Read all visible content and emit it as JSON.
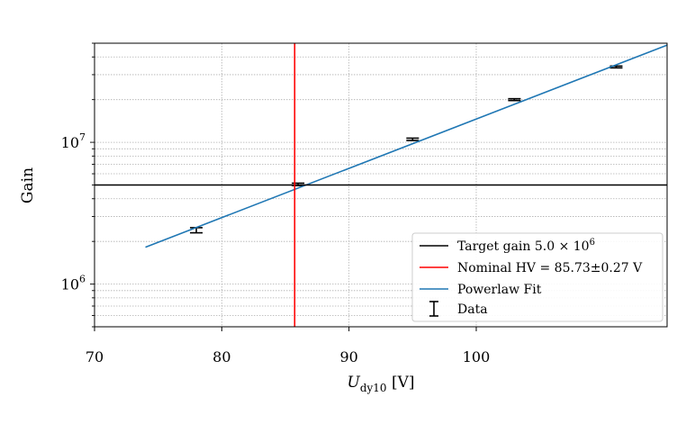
{
  "chart_data": {
    "type": "scatter",
    "title": "",
    "xlabel": {
      "main": "U",
      "sub": "dy10",
      "unit": " [V]"
    },
    "ylabel": "Gain",
    "xlim": [
      70,
      115
    ],
    "ylim": [
      500000,
      50000000
    ],
    "yscale": "log",
    "grid": true,
    "legend_position": "lower-right",
    "x_ticks": [
      {
        "value": 70,
        "label": "70"
      },
      {
        "value": 80,
        "label": "80"
      },
      {
        "value": 90,
        "label": "90"
      },
      {
        "value": 100,
        "label": "100"
      }
    ],
    "y_major_ticks": [
      {
        "value": 1000000,
        "base": "10",
        "exp": "6"
      },
      {
        "value": 10000000,
        "base": "10",
        "exp": "7"
      }
    ],
    "series": [
      {
        "name": "Data",
        "kind": "errorbar",
        "color": "#000000",
        "x": [
          78,
          86,
          95,
          103,
          111
        ],
        "y": [
          2400000,
          5050000,
          10500000,
          20000000,
          34000000
        ],
        "yerr": [
          100000,
          100000,
          200000,
          300000,
          500000
        ]
      },
      {
        "name": "Powerlaw Fit",
        "kind": "line",
        "color": "#1f77b4",
        "x": [
          74,
          115
        ],
        "y": [
          1820000,
          48500000
        ]
      },
      {
        "name": "Target gain 5.0 × 10⁶",
        "kind": "hline",
        "color": "#000000",
        "y": 5000000
      },
      {
        "name": "Nominal HV = 85.73±0.27 V",
        "kind": "vline",
        "color": "#ff0000",
        "x": 85.73
      }
    ],
    "legend": {
      "target": {
        "prefix": "Target gain 5.0 × 10",
        "sup": "6"
      },
      "nominal": "Nominal HV = 85.73±0.27 V",
      "fit": "Powerlaw Fit",
      "data": "Data"
    }
  }
}
